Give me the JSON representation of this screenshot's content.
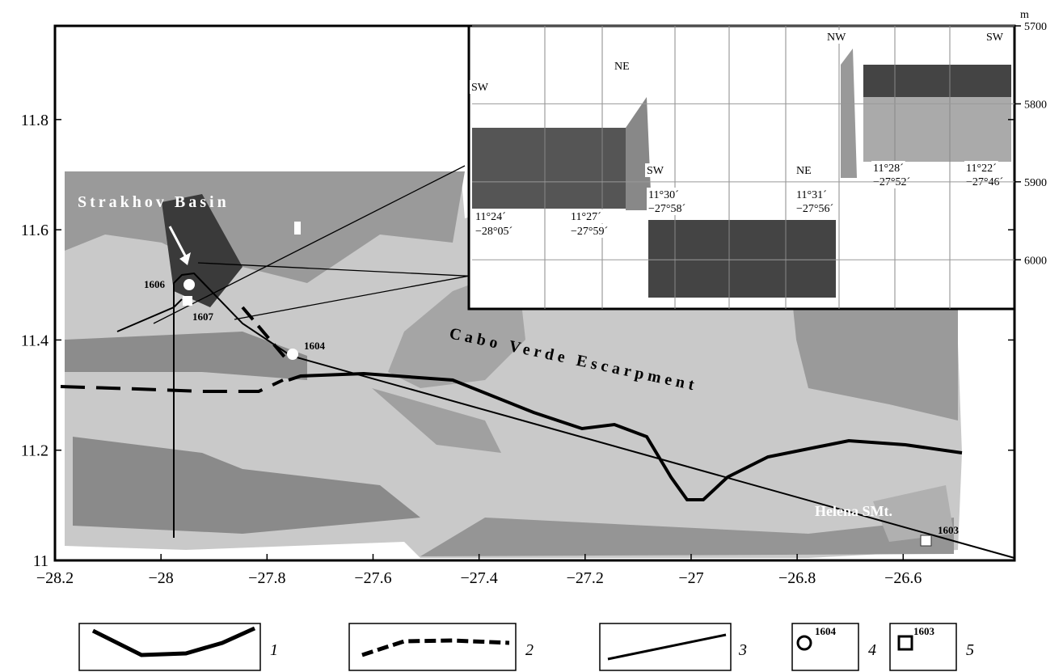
{
  "map": {
    "xlim": [
      -28.2,
      -26.39
    ],
    "ylim": [
      11,
      11.97
    ],
    "xticks": [
      {
        "value": -28.2,
        "label": "−28.2"
      },
      {
        "value": -28,
        "label": "−28"
      },
      {
        "value": -27.8,
        "label": "−27.8"
      },
      {
        "value": -27.6,
        "label": "−27.6"
      },
      {
        "value": -27.4,
        "label": "−27.4"
      },
      {
        "value": -27.2,
        "label": "−27.2"
      },
      {
        "value": -27,
        "label": "−27"
      },
      {
        "value": -26.8,
        "label": "−26.8"
      },
      {
        "value": -26.6,
        "label": "−26.6"
      }
    ],
    "yticks": [
      11,
      11.2,
      11.4,
      11.6,
      11.8
    ],
    "depth_unit": "m",
    "depth_lim": [
      5700,
      6063
    ],
    "depth_ticks": [
      5700,
      5800,
      5900,
      6000
    ],
    "place_names": [
      "Strakhov Basin",
      "Cabo Verde Escarpment",
      "Helena SMt."
    ],
    "stations": [
      "1606",
      "1607",
      "1604",
      "1603"
    ],
    "inset_labels": [
      "SW",
      "NE",
      "11°24´",
      "−28°05´",
      "11°27´",
      "−27°59´",
      "SW",
      "NE",
      "11°30´",
      "−27°58´",
      "11°31´",
      "−27°56´",
      "NW",
      "SW",
      "11°28´",
      "−27°52´",
      "11°22´",
      "−27°46´"
    ]
  },
  "legend": {
    "numbers": [
      "1",
      "2",
      "3",
      "4",
      "5"
    ],
    "stations": [
      "1604",
      "1603"
    ]
  }
}
